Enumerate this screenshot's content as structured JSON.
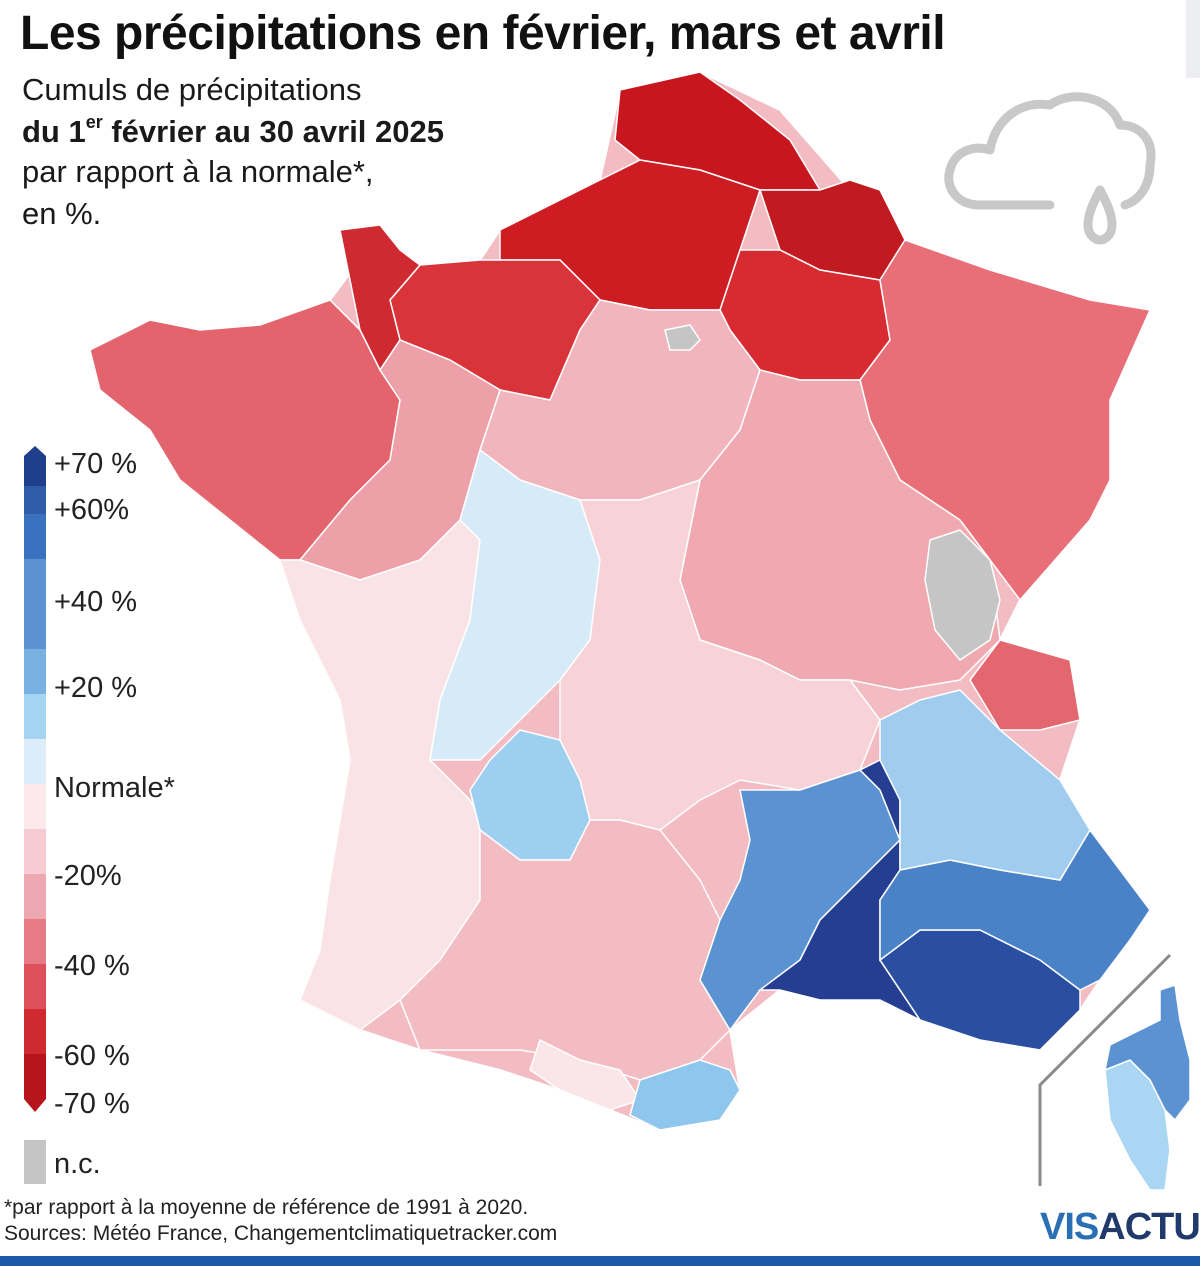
{
  "title": "Les précipitations en février, mars et avril",
  "subtitle": {
    "line1": "Cumuls de précipitations",
    "line2_a": "du 1",
    "line2_sup": "er",
    "line2_b": " février au 30 avril 2025",
    "line3": "par rapport à la normale*,",
    "line4": "en %."
  },
  "legend": {
    "labels": [
      "+70 %",
      "+60%",
      "+40 %",
      "+20 %",
      "Normale*",
      "-20%",
      "-40 %",
      "-60 %",
      "-70 %",
      "n.c."
    ],
    "colors": [
      "#1f3f8c",
      "#2e5ca8",
      "#3b72bf",
      "#5b93d2",
      "#79b1e3",
      "#a6d5f2",
      "#dcecf8",
      "#fbe9ec",
      "#f6ccd2",
      "#eea8b1",
      "#e77b85",
      "#dd4f59",
      "#cf2a30",
      "#b5151b",
      "#c5c5c5"
    ]
  },
  "map": {
    "regions": [
      {
        "name": "Nord-Pas-de-Calais",
        "level": "-70 %",
        "color": "#c8161e"
      },
      {
        "name": "Picardie / Somme",
        "level": "-70 %",
        "color": "#cd1c22"
      },
      {
        "name": "Ardennes",
        "level": "-70 %",
        "color": "#c11a20"
      },
      {
        "name": "Marne / Aisne",
        "level": "-60 %",
        "color": "#d72b31"
      },
      {
        "name": "Normandie",
        "level": "-60 %",
        "color": "#d9343a"
      },
      {
        "name": "Cotentin",
        "level": "-60 %",
        "color": "#d02a31"
      },
      {
        "name": "Bretagne",
        "level": "-40 %",
        "color": "#e3646d"
      },
      {
        "name": "Lorraine / Alsace",
        "level": "-40 %",
        "color": "#e86e77"
      },
      {
        "name": "Centre-Val de Loire",
        "level": "-20%",
        "color": "#f2b5bd"
      },
      {
        "name": "Pays de la Loire",
        "level": "-20%",
        "color": "#eea0a8"
      },
      {
        "name": "Bourgogne-Franche-Comté",
        "level": "-20%",
        "color": "#f0a9b0"
      },
      {
        "name": "Nouvelle-Aquitaine",
        "level": "Normale*",
        "color": "#fae3e6"
      },
      {
        "name": "Limousin",
        "level": "Normale*",
        "color": "#d7eaf8"
      },
      {
        "name": "Cantal",
        "level": "+20 %",
        "color": "#9ccff0"
      },
      {
        "name": "Auvergne-Rhône-Alpes",
        "level": "Normale*",
        "color": "#f7d2d7"
      },
      {
        "name": "Occitanie",
        "level": "-20%",
        "color": "#f3bcc3"
      },
      {
        "name": "Ariège",
        "level": "Normale*",
        "color": "#fae6e9"
      },
      {
        "name": "Pyrénées-Orientales",
        "level": "+20 %",
        "color": "#8fc6ee"
      },
      {
        "name": "Gard / Hérault",
        "level": "+40 %",
        "color": "#5b93d2"
      },
      {
        "name": "Lozère / Ardèche",
        "level": "+70 %",
        "color": "#253e91"
      },
      {
        "name": "Bouches-du-Rhône / Var",
        "level": "+60 %",
        "color": "#2a4fa0"
      },
      {
        "name": "Alpes du Sud",
        "level": "+40 %",
        "color": "#4a82c8"
      },
      {
        "name": "Isère / Savoie",
        "level": "+20 %",
        "color": "#9fccef"
      },
      {
        "name": "Haute-Savoie",
        "level": "-40 %",
        "color": "#e4666f"
      },
      {
        "name": "Jura",
        "level": "n.c.",
        "color": "#c5c5c5"
      },
      {
        "name": "Corse-du-Sud",
        "level": "+20 %",
        "color": "#a8d6f3"
      },
      {
        "name": "Haute-Corse",
        "level": "+40 %",
        "color": "#5b93d2"
      }
    ]
  },
  "footnote": "*par rapport à la moyenne de référence de 1991 à 2020.",
  "sources": "Sources: Météo France, Changementclimatiquetracker.com",
  "logo": {
    "part1": "VIS",
    "part2": "ACTU"
  },
  "icon": "rain-cloud-icon"
}
